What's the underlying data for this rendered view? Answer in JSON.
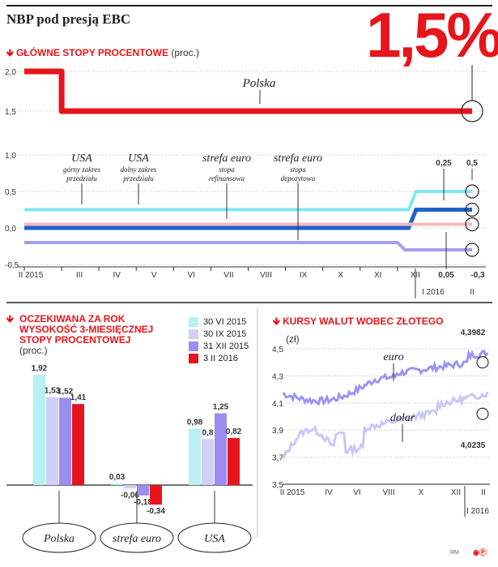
{
  "title": "NBP pod presją EBC",
  "headline_value": "1,5%",
  "section1": {
    "title": "GŁÓWNE STOPY PROCENTOWE",
    "unit": "(proc.)"
  },
  "section2": {
    "title_lines": [
      "OCZEKIWANA ZA ROK",
      "WYSOKOŚĆ 3-MIESIĘCZNEJ",
      "STOPY PROCENTOWEJ"
    ],
    "unit": "(proc.)"
  },
  "section3": {
    "title": "KURSY WALUT WOBEC ZŁOTEGO",
    "unit": "(zł)"
  },
  "credit": "RM",
  "colors": {
    "red": "#e8141b",
    "cyan": "#7fe8ef",
    "blue": "#1e64c8",
    "pink": "#f4b8bd",
    "lilac": "#a49ef0",
    "purple": "#9b8ef0",
    "lightlilac": "#c8c8f8",
    "violet": "#9b95ef"
  },
  "chart_data": [
    {
      "type": "line",
      "x_ticks": [
        "II 2015",
        "III",
        "IV",
        "V",
        "VI",
        "VII",
        "VIII",
        "IX",
        "X",
        "XI",
        "XII",
        "I 2016",
        "II"
      ],
      "series": [
        {
          "name": "Polska",
          "color": "#e8141b",
          "values": [
            [
              0,
              2.0
            ],
            [
              1,
              1.5
            ],
            [
              12,
              1.5
            ]
          ]
        }
      ],
      "yticks": [
        "2,0",
        "1,5"
      ],
      "ylim": [
        1.4,
        2.05
      ],
      "annotations": [
        {
          "label": "Polska"
        }
      ]
    },
    {
      "type": "line",
      "x_ticks": [
        "II 2015",
        "III",
        "IV",
        "V",
        "VI",
        "VII",
        "VIII",
        "IX",
        "X",
        "XI",
        "XII",
        "I 2016",
        "II"
      ],
      "series": [
        {
          "name": "USA górny zakres przedziału",
          "color": "#7fe8ef",
          "values": [
            [
              0,
              0.25
            ],
            [
              10.3,
              0.25
            ],
            [
              10.5,
              0.5
            ],
            [
              12,
              0.5
            ]
          ]
        },
        {
          "name": "USA dolny zakres przedziału",
          "color": "#1e64c8",
          "values": [
            [
              0,
              0.0
            ],
            [
              10.3,
              0.0
            ],
            [
              10.5,
              0.25
            ],
            [
              12,
              0.25
            ]
          ]
        },
        {
          "name": "strefa euro stopa refinansowa",
          "color": "#f4b8bd",
          "values": [
            [
              0,
              0.05
            ],
            [
              12,
              0.05
            ]
          ]
        },
        {
          "name": "strefa euro stopa depozytowa",
          "color": "#a49ef0",
          "values": [
            [
              0,
              -0.2
            ],
            [
              10.0,
              -0.2
            ],
            [
              10.2,
              -0.3
            ],
            [
              12,
              -0.3
            ]
          ]
        }
      ],
      "labels": [
        {
          "title": "USA",
          "sub": [
            "górny zakres",
            "przedziału"
          ]
        },
        {
          "title": "USA",
          "sub": [
            "dolny zakres",
            "przedziału"
          ]
        },
        {
          "title": "strefa euro",
          "sub": [
            "stopa",
            "refinansowa"
          ]
        },
        {
          "title": "strefa euro",
          "sub": [
            "stopa",
            "depozytowa"
          ]
        }
      ],
      "end_values": [
        "0,25",
        "0,5",
        "0,05",
        "-0,3"
      ],
      "yticks": [
        "1,0",
        "0,5",
        "0,0",
        "-0,5"
      ],
      "ylim": [
        -0.5,
        1.0
      ]
    },
    {
      "type": "bar",
      "categories": [
        "Polska",
        "strefa euro",
        "USA"
      ],
      "series": [
        {
          "name": "30 VI 2015",
          "color": "#b8f0f4",
          "values": [
            1.92,
            0.03,
            0.98
          ]
        },
        {
          "name": "30 IX 2015",
          "color": "#cfcff7",
          "values": [
            1.53,
            -0.06,
            0.8
          ]
        },
        {
          "name": "31 XII 2015",
          "color": "#9b8ef0",
          "values": [
            1.52,
            -0.18,
            1.25
          ]
        },
        {
          "name": "3 II 2016",
          "color": "#e8141b",
          "values": [
            1.41,
            -0.34,
            0.82
          ]
        }
      ],
      "value_labels": [
        [
          "1,92",
          "1,53",
          "1,52",
          "1,41"
        ],
        [
          "0,03",
          "-0,06",
          "-0,18",
          "-0,34"
        ],
        [
          "0,98",
          "0,8",
          "1,25",
          "0,82"
        ]
      ],
      "ylim": [
        -0.45,
        2.05
      ]
    },
    {
      "type": "line",
      "x_ticks": [
        "II 2015",
        "IV",
        "VI",
        "VIII",
        "X",
        "XII",
        "II"
      ],
      "x_sub": "I 2016",
      "series": [
        {
          "name": "euro",
          "color": "#9b95ef",
          "start": 4.17,
          "end": 4.3982
        },
        {
          "name": "dolar",
          "color": "#c8c8f8",
          "start": 3.68,
          "end": 4.0235
        }
      ],
      "end_values": [
        "4,3982",
        "4,0235"
      ],
      "yticks": [
        "4,5",
        "4,3",
        "4,1",
        "3,9",
        "3,7",
        "3,5"
      ],
      "ylim": [
        3.5,
        4.55
      ]
    }
  ]
}
